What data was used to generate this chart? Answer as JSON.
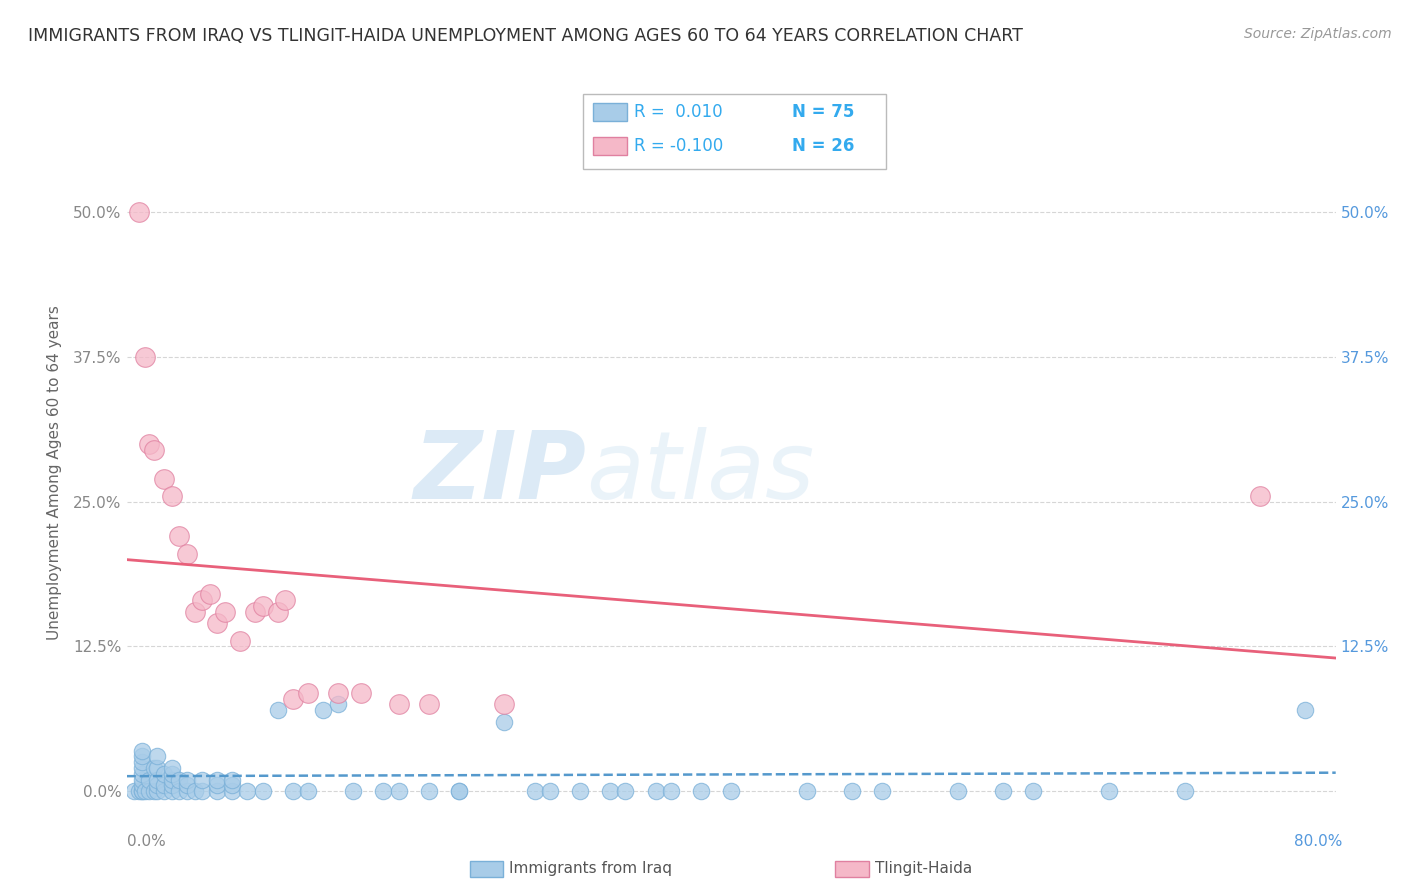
{
  "title": "IMMIGRANTS FROM IRAQ VS TLINGIT-HAIDA UNEMPLOYMENT AMONG AGES 60 TO 64 YEARS CORRELATION CHART",
  "source": "Source: ZipAtlas.com",
  "ylabel": "Unemployment Among Ages 60 to 64 years",
  "xlim": [
    0.0,
    0.8
  ],
  "ylim": [
    -0.01,
    0.56
  ],
  "yticks": [
    0.0,
    0.125,
    0.25,
    0.375,
    0.5
  ],
  "ytick_labels_left": [
    "0.0%",
    "12.5%",
    "25.0%",
    "37.5%",
    "50.0%"
  ],
  "ytick_labels_right": [
    "",
    "12.5%",
    "25.0%",
    "37.5%",
    "50.0%"
  ],
  "color_blue": "#a8cce8",
  "color_blue_edge": "#7ab0d8",
  "color_pink": "#f5b8c8",
  "color_pink_edge": "#e080a0",
  "color_blue_line": "#5599cc",
  "color_pink_line": "#e8607a",
  "color_grid": "#cccccc",
  "watermark_zip": "#c5ddf0",
  "watermark_atlas": "#c5ddf0",
  "blue_scatter_x": [
    0.005,
    0.008,
    0.01,
    0.01,
    0.01,
    0.01,
    0.01,
    0.01,
    0.01,
    0.01,
    0.01,
    0.012,
    0.015,
    0.015,
    0.018,
    0.018,
    0.02,
    0.02,
    0.02,
    0.02,
    0.02,
    0.025,
    0.025,
    0.025,
    0.03,
    0.03,
    0.03,
    0.03,
    0.03,
    0.035,
    0.035,
    0.04,
    0.04,
    0.04,
    0.045,
    0.05,
    0.05,
    0.06,
    0.06,
    0.06,
    0.07,
    0.07,
    0.07,
    0.08,
    0.09,
    0.1,
    0.11,
    0.12,
    0.13,
    0.14,
    0.15,
    0.17,
    0.18,
    0.2,
    0.22,
    0.22,
    0.25,
    0.27,
    0.28,
    0.3,
    0.32,
    0.33,
    0.35,
    0.36,
    0.38,
    0.4,
    0.45,
    0.48,
    0.5,
    0.55,
    0.58,
    0.6,
    0.65,
    0.7,
    0.78
  ],
  "blue_scatter_y": [
    0.0,
    0.0,
    0.0,
    0.0,
    0.005,
    0.01,
    0.015,
    0.02,
    0.025,
    0.03,
    0.035,
    0.0,
    0.0,
    0.01,
    0.0,
    0.02,
    0.0,
    0.005,
    0.01,
    0.02,
    0.03,
    0.0,
    0.005,
    0.015,
    0.0,
    0.005,
    0.01,
    0.015,
    0.02,
    0.0,
    0.01,
    0.0,
    0.005,
    0.01,
    0.0,
    0.0,
    0.01,
    0.0,
    0.005,
    0.01,
    0.0,
    0.005,
    0.01,
    0.0,
    0.0,
    0.07,
    0.0,
    0.0,
    0.07,
    0.075,
    0.0,
    0.0,
    0.0,
    0.0,
    0.0,
    0.0,
    0.06,
    0.0,
    0.0,
    0.0,
    0.0,
    0.0,
    0.0,
    0.0,
    0.0,
    0.0,
    0.0,
    0.0,
    0.0,
    0.0,
    0.0,
    0.0,
    0.0,
    0.0,
    0.07
  ],
  "pink_scatter_x": [
    0.008,
    0.012,
    0.015,
    0.018,
    0.025,
    0.03,
    0.035,
    0.04,
    0.045,
    0.05,
    0.055,
    0.06,
    0.065,
    0.075,
    0.085,
    0.09,
    0.1,
    0.105,
    0.11,
    0.12,
    0.14,
    0.155,
    0.18,
    0.2,
    0.25,
    0.75
  ],
  "pink_scatter_y": [
    0.5,
    0.375,
    0.3,
    0.295,
    0.27,
    0.255,
    0.22,
    0.205,
    0.155,
    0.165,
    0.17,
    0.145,
    0.155,
    0.13,
    0.155,
    0.16,
    0.155,
    0.165,
    0.08,
    0.085,
    0.085,
    0.085,
    0.075,
    0.075,
    0.075,
    0.255
  ],
  "blue_trendline_x": [
    0.0,
    0.8
  ],
  "blue_trendline_y": [
    0.013,
    0.016
  ],
  "pink_trendline_x": [
    0.0,
    0.8
  ],
  "pink_trendline_y": [
    0.2,
    0.115
  ]
}
